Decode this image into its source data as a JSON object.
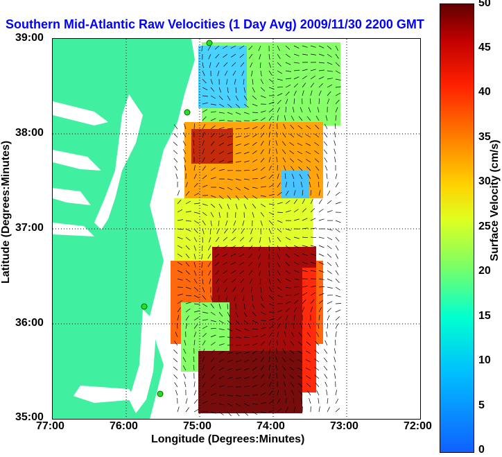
{
  "title": "Southern Mid-Atlantic Raw Velocities (1 Day Avg) 2009/11/30 2200 GMT",
  "xlabel": "Longitude (Degrees:Minutes)",
  "ylabel": "Latitude (Degrees:Minutes)",
  "x_ticks": [
    "77:00",
    "76:00",
    "75:00",
    "74:00",
    "73:00",
    "72:00"
  ],
  "y_ticks": [
    "39:00",
    "38:00",
    "37:00",
    "36:00",
    "35:00"
  ],
  "colorbar": {
    "title": "Surface Velocity (cm/s)",
    "ticks": [
      "50",
      "45",
      "40",
      "35",
      "30",
      "25",
      "20",
      "15",
      "10",
      "5",
      "0"
    ],
    "range": [
      0,
      50
    ]
  },
  "map": {
    "lon_range": [
      -77,
      -72
    ],
    "lat_range": [
      35,
      39
    ],
    "land_color": "#40f0a0",
    "water_color": "#ffffff",
    "grid": "dotted",
    "station_color": "#20e020"
  }
}
